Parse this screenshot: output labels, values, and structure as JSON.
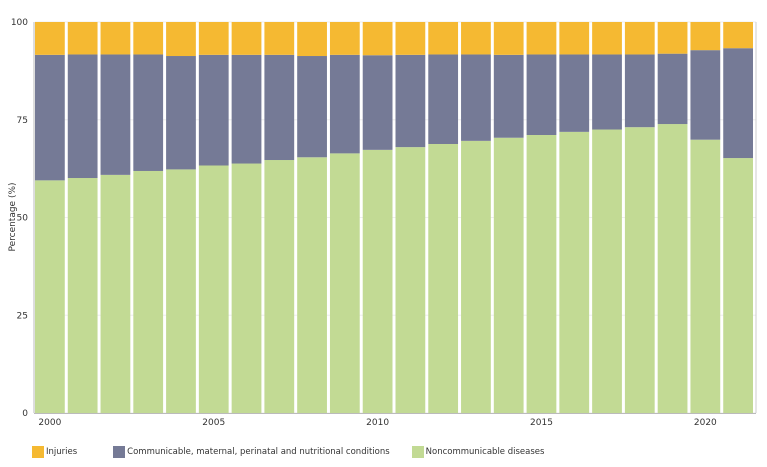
{
  "chart_data": {
    "type": "bar",
    "stacked": true,
    "title": "",
    "xlabel": "",
    "ylabel": "Percentage (%)",
    "ylim": [
      0,
      100
    ],
    "yticks": [
      0,
      25,
      50,
      75,
      100
    ],
    "xtick_labels": [
      "2000",
      "2005",
      "2010",
      "2015",
      "2020"
    ],
    "categories": [
      "2000",
      "2001",
      "2002",
      "2003",
      "2004",
      "2005",
      "2006",
      "2007",
      "2008",
      "2009",
      "2010",
      "2011",
      "2012",
      "2013",
      "2014",
      "2015",
      "2016",
      "2017",
      "2018",
      "2019",
      "2020",
      "2021"
    ],
    "series": [
      {
        "name": "Noncommunicable diseases",
        "color": "#c2da94",
        "values": [
          59.5,
          60.1,
          60.9,
          61.9,
          62.3,
          63.3,
          63.8,
          64.7,
          65.4,
          66.4,
          67.3,
          68.0,
          68.8,
          69.6,
          70.4,
          71.1,
          71.9,
          72.5,
          73.1,
          73.9,
          69.9,
          65.2
        ]
      },
      {
        "name": "Communicable, maternal, perinatal and nutritional conditions",
        "color": "#757a96",
        "values": [
          32.1,
          31.6,
          30.8,
          29.8,
          29.0,
          28.3,
          27.8,
          26.9,
          25.9,
          25.2,
          24.2,
          23.6,
          22.9,
          22.1,
          21.2,
          20.6,
          19.8,
          19.2,
          18.6,
          18.0,
          22.9,
          28.1
        ]
      },
      {
        "name": "Injuries",
        "color": "#f5b932",
        "values": [
          8.4,
          8.3,
          8.3,
          8.3,
          8.7,
          8.4,
          8.4,
          8.4,
          8.7,
          8.4,
          8.5,
          8.4,
          8.3,
          8.3,
          8.4,
          8.3,
          8.3,
          8.3,
          8.3,
          8.1,
          7.2,
          6.7
        ]
      }
    ],
    "legend": {
      "placement": "bottom-left",
      "entries": [
        {
          "label": "Injuries",
          "color": "#f5b932"
        },
        {
          "label": "Communicable, maternal, perinatal and nutritional conditions",
          "color": "#757a96"
        },
        {
          "label": "Noncommunicable diseases",
          "color": "#c2da94"
        }
      ]
    },
    "grid": true
  }
}
